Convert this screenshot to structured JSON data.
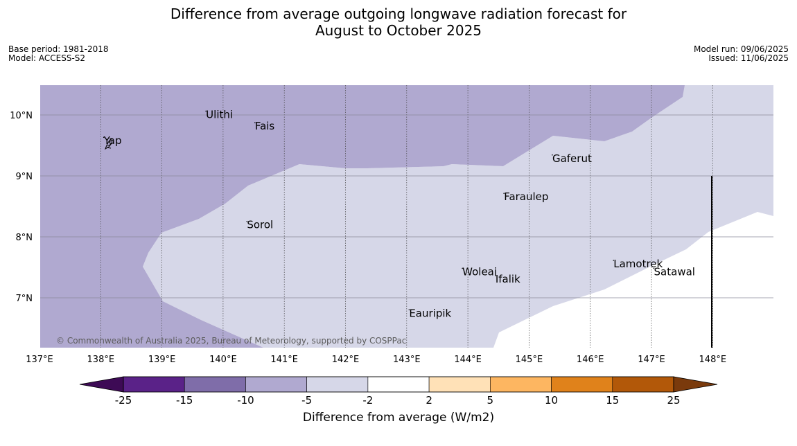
{
  "title_line1": "Difference from average outgoing longwave radiation forecast for",
  "title_line2": "August to October 2025",
  "base_period": "Base period: 1981-2018",
  "model": "Model: ACCESS-S2",
  "model_run": "Model run: 09/06/2025",
  "issued": "Issued: 11/06/2025",
  "copyright": "© Commonwealth of Australia 2025, Bureau of Meteorology, supported by COSPPac",
  "map": {
    "lon_range": [
      137,
      149
    ],
    "lat_range": [
      6.2,
      10.5
    ],
    "lon_ticks": [
      "137°E",
      "138°E",
      "139°E",
      "140°E",
      "141°E",
      "142°E",
      "143°E",
      "144°E",
      "145°E",
      "146°E",
      "147°E",
      "148°E"
    ],
    "lat_ticks": [
      "7°N",
      "8°N",
      "9°N",
      "10°N"
    ],
    "places": [
      {
        "name": "Yap",
        "lon": 138.05,
        "lat": 9.52
      },
      {
        "name": "Ulithi",
        "lon": 139.72,
        "lat": 9.95
      },
      {
        "name": "Fais",
        "lon": 140.52,
        "lat": 9.76
      },
      {
        "name": "Sorol",
        "lon": 140.39,
        "lat": 8.14
      },
      {
        "name": "Gaferut",
        "lon": 145.38,
        "lat": 9.23
      },
      {
        "name": "Faraulep",
        "lon": 144.59,
        "lat": 8.6
      },
      {
        "name": "Woleai",
        "lon": 143.91,
        "lat": 7.37
      },
      {
        "name": "Ifalik",
        "lon": 144.45,
        "lat": 7.25
      },
      {
        "name": "Lamotrek",
        "lon": 146.38,
        "lat": 7.5
      },
      {
        "name": "Satawal",
        "lon": 147.04,
        "lat": 7.37
      },
      {
        "name": "Eauripik",
        "lon": 143.04,
        "lat": 6.69
      }
    ]
  },
  "colorbar": {
    "label": "Difference from average (W/m2)",
    "ticks": [
      "-25",
      "-15",
      "-10",
      "-5",
      "-2",
      "2",
      "5",
      "10",
      "15",
      "25"
    ],
    "colors": [
      "#5a2288",
      "#7f6da9",
      "#b0a9d0",
      "#d6d7e8",
      "#ffffff",
      "#ffe1b7",
      "#fdb661",
      "#e0821b",
      "#b25809"
    ],
    "under_color": "#3d0a55",
    "over_color": "#7a3a0c"
  }
}
